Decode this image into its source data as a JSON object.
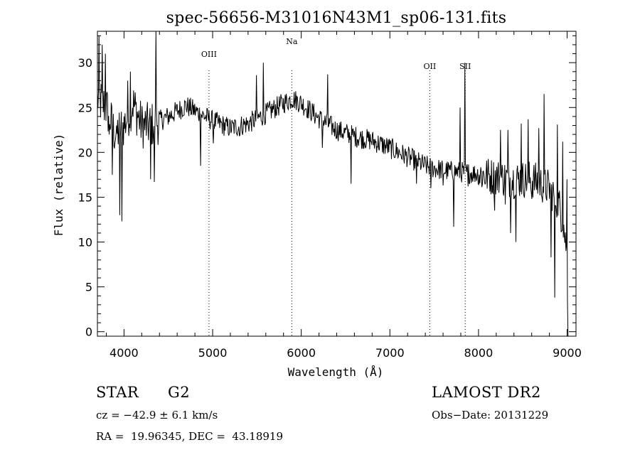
{
  "chart_data": {
    "type": "line",
    "title": "spec-56656-M31016N43M1_sp06-131.fits",
    "xlabel": "Wavelength (Å)",
    "ylabel": "Flux (relative)",
    "xlim": [
      3700,
      9100
    ],
    "ylim": [
      -0.5,
      33.5
    ],
    "xticks": [
      4000,
      5000,
      6000,
      7000,
      8000,
      9000
    ],
    "yticks": [
      0,
      5,
      10,
      15,
      20,
      25,
      30
    ],
    "lines": [
      {
        "label": "OIII",
        "x": 4959
      },
      {
        "label": "Na",
        "x": 5893
      },
      {
        "label": "OII",
        "x": 7450
      },
      {
        "label": "SII",
        "x": 7850
      }
    ],
    "continuum": [
      [
        3700,
        26
      ],
      [
        3800,
        25
      ],
      [
        3900,
        22
      ],
      [
        4000,
        23
      ],
      [
        4100,
        25.5
      ],
      [
        4200,
        23
      ],
      [
        4300,
        23
      ],
      [
        4500,
        24
      ],
      [
        4700,
        25.2
      ],
      [
        5000,
        23.5
      ],
      [
        5200,
        22.7
      ],
      [
        5400,
        23.2
      ],
      [
        5600,
        24.3
      ],
      [
        5800,
        25.5
      ],
      [
        5900,
        26
      ],
      [
        6000,
        25.5
      ],
      [
        6200,
        23.8
      ],
      [
        6400,
        22.5
      ],
      [
        6600,
        21.8
      ],
      [
        6800,
        21.3
      ],
      [
        7000,
        20.5
      ],
      [
        7200,
        19.5
      ],
      [
        7400,
        18.5
      ],
      [
        7600,
        18
      ],
      [
        7800,
        17.8
      ],
      [
        8000,
        17.6
      ],
      [
        8200,
        17.2
      ],
      [
        8400,
        17
      ],
      [
        8600,
        17
      ],
      [
        8800,
        16
      ],
      [
        8900,
        14.5
      ],
      [
        8960,
        12
      ],
      [
        9000,
        8
      ],
      [
        9010,
        0
      ]
    ],
    "spikes": [
      [
        3720,
        33
      ],
      [
        3755,
        32
      ],
      [
        3790,
        31
      ],
      [
        3830,
        22
      ],
      [
        3870,
        17.5
      ],
      [
        3915,
        23
      ],
      [
        3950,
        13
      ],
      [
        3975,
        12.3
      ],
      [
        4040,
        28
      ],
      [
        4070,
        29
      ],
      [
        4300,
        17
      ],
      [
        4345,
        16.7
      ],
      [
        4362,
        33.5
      ],
      [
        4862,
        18.5
      ],
      [
        5010,
        21
      ],
      [
        5300,
        21.8
      ],
      [
        5493,
        28.6
      ],
      [
        5570,
        30
      ],
      [
        6240,
        20.5
      ],
      [
        6300,
        28.7
      ],
      [
        6563,
        16.5
      ],
      [
        6710,
        21
      ],
      [
        7300,
        16.5
      ],
      [
        7460,
        16
      ],
      [
        7600,
        16.3
      ],
      [
        7720,
        11.7
      ],
      [
        7790,
        25
      ],
      [
        7845,
        30
      ],
      [
        7880,
        16.2
      ],
      [
        8180,
        13.5
      ],
      [
        8250,
        22.5
      ],
      [
        8300,
        14.2
      ],
      [
        8330,
        22.5
      ],
      [
        8360,
        11
      ],
      [
        8420,
        10
      ],
      [
        8480,
        23.2
      ],
      [
        8560,
        23.7
      ],
      [
        8600,
        14.8
      ],
      [
        8680,
        22.7
      ],
      [
        8740,
        26.5
      ],
      [
        8820,
        8.3
      ],
      [
        8860,
        3.8
      ],
      [
        8890,
        23.1
      ],
      [
        8950,
        21.2
      ],
      [
        8985,
        9
      ],
      [
        9000,
        17
      ]
    ]
  },
  "footer": {
    "object_class": "STAR",
    "subclass": "G2",
    "survey": "LAMOST DR2",
    "cz": "cz = −42.9 ± 6.1 km/s",
    "obs_date": "Obs−Date: 20131229",
    "coords": "RA =  19.96345, DEC =  43.18919"
  }
}
